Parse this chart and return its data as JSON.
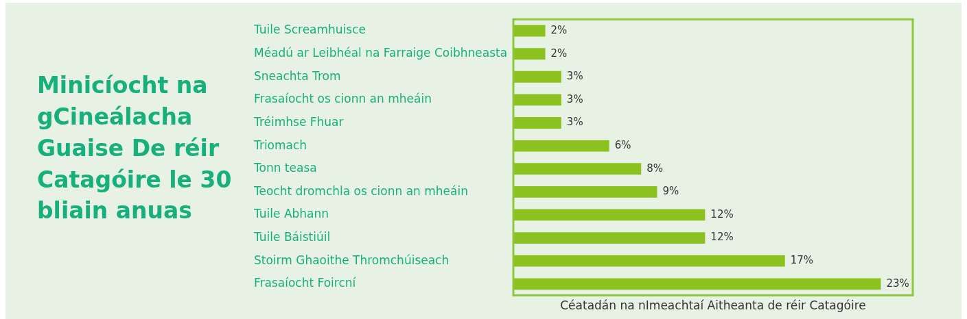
{
  "chart_data": {
    "type": "bar",
    "orientation": "horizontal",
    "title": "Minicíocht na gCineálacha Guaise De réir Catagóire le 30 bliain anuas",
    "xlabel": "Céatadán na nImeachtaí Aitheanta de réir Catagóire",
    "categories": [
      "Tuile Screamhuisce",
      "Méadú ar Leibhéal na Farraige Coibhneasta",
      "Sneachta Trom",
      "Frasaíocht os cionn an mheáin",
      "Tréimhse Fhuar",
      "Triomach",
      "Tonn teasa",
      "Teocht dromchla os cionn an mheáin",
      "Tuile Abhann",
      "Tuile Báistiúil",
      "Stoirm Ghaoithe Thromchúiseach",
      "Frasaíocht Foircní"
    ],
    "values": [
      2,
      2,
      3,
      3,
      3,
      6,
      8,
      9,
      12,
      12,
      17,
      23
    ],
    "value_labels": [
      "2%",
      "2%",
      "3%",
      "3%",
      "3%",
      "6%",
      "8%",
      "9%",
      "12%",
      "12%",
      "17%",
      "23%"
    ],
    "color": "#8cc21f",
    "tick_labels": "y",
    "grid": false,
    "legend": false
  }
}
